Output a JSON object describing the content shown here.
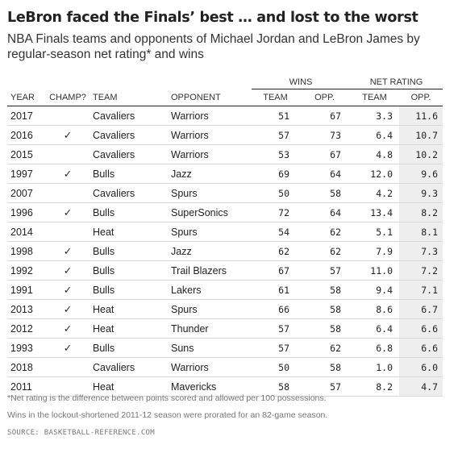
{
  "title": "LeBron faced the Finals’ best … and lost to the worst",
  "subtitle": "NBA Finals teams and opponents of Michael Jordan and LeBron James by regular-season net rating* and wins",
  "table": {
    "group_headers": {
      "wins": "WINS",
      "net_rating": "NET RATING"
    },
    "columns": {
      "year": "YEAR",
      "champ": "CHAMP?",
      "team": "TEAM",
      "opponent": "OPPONENT",
      "wins_team": "TEAM",
      "wins_opp": "OPP.",
      "net_team": "TEAM",
      "net_opp": "OPP."
    },
    "rows": [
      {
        "year": "2017",
        "champ": "",
        "team": "Cavaliers",
        "opponent": "Warriors",
        "wins_team": "51",
        "wins_opp": "67",
        "net_team": "3.3",
        "net_opp": "11.6"
      },
      {
        "year": "2016",
        "champ": "✓",
        "team": "Cavaliers",
        "opponent": "Warriors",
        "wins_team": "57",
        "wins_opp": "73",
        "net_team": "6.4",
        "net_opp": "10.7"
      },
      {
        "year": "2015",
        "champ": "",
        "team": "Cavaliers",
        "opponent": "Warriors",
        "wins_team": "53",
        "wins_opp": "67",
        "net_team": "4.8",
        "net_opp": "10.2"
      },
      {
        "year": "1997",
        "champ": "✓",
        "team": "Bulls",
        "opponent": "Jazz",
        "wins_team": "69",
        "wins_opp": "64",
        "net_team": "12.0",
        "net_opp": "9.6"
      },
      {
        "year": "2007",
        "champ": "",
        "team": "Cavaliers",
        "opponent": "Spurs",
        "wins_team": "50",
        "wins_opp": "58",
        "net_team": "4.2",
        "net_opp": "9.3"
      },
      {
        "year": "1996",
        "champ": "✓",
        "team": "Bulls",
        "opponent": "SuperSonics",
        "wins_team": "72",
        "wins_opp": "64",
        "net_team": "13.4",
        "net_opp": "8.2"
      },
      {
        "year": "2014",
        "champ": "",
        "team": "Heat",
        "opponent": "Spurs",
        "wins_team": "54",
        "wins_opp": "62",
        "net_team": "5.1",
        "net_opp": "8.1"
      },
      {
        "year": "1998",
        "champ": "✓",
        "team": "Bulls",
        "opponent": "Jazz",
        "wins_team": "62",
        "wins_opp": "62",
        "net_team": "7.9",
        "net_opp": "7.3"
      },
      {
        "year": "1992",
        "champ": "✓",
        "team": "Bulls",
        "opponent": "Trail Blazers",
        "wins_team": "67",
        "wins_opp": "57",
        "net_team": "11.0",
        "net_opp": "7.2"
      },
      {
        "year": "1991",
        "champ": "✓",
        "team": "Bulls",
        "opponent": "Lakers",
        "wins_team": "61",
        "wins_opp": "58",
        "net_team": "9.4",
        "net_opp": "7.1"
      },
      {
        "year": "2013",
        "champ": "✓",
        "team": "Heat",
        "opponent": "Spurs",
        "wins_team": "66",
        "wins_opp": "58",
        "net_team": "8.6",
        "net_opp": "6.7"
      },
      {
        "year": "2012",
        "champ": "✓",
        "team": "Heat",
        "opponent": "Thunder",
        "wins_team": "57",
        "wins_opp": "58",
        "net_team": "6.4",
        "net_opp": "6.6"
      },
      {
        "year": "1993",
        "champ": "✓",
        "team": "Bulls",
        "opponent": "Suns",
        "wins_team": "57",
        "wins_opp": "62",
        "net_team": "6.8",
        "net_opp": "6.6"
      },
      {
        "year": "2018",
        "champ": "",
        "team": "Cavaliers",
        "opponent": "Warriors",
        "wins_team": "50",
        "wins_opp": "58",
        "net_team": "1.0",
        "net_opp": "6.0"
      },
      {
        "year": "2011",
        "champ": "",
        "team": "Heat",
        "opponent": "Mavericks",
        "wins_team": "58",
        "wins_opp": "57",
        "net_team": "8.2",
        "net_opp": "4.7"
      }
    ]
  },
  "notes": [
    "*Net rating is the difference between points scored and allowed per 100 possessions.",
    "Wins in the lockout-shortened 2011-12 season were prorated for an 82-game season."
  ],
  "source": "SOURCE: BASKETBALL-REFERENCE.COM",
  "colors": {
    "highlight_column": "#eeeeee",
    "text": "#222222",
    "muted": "#777777"
  }
}
